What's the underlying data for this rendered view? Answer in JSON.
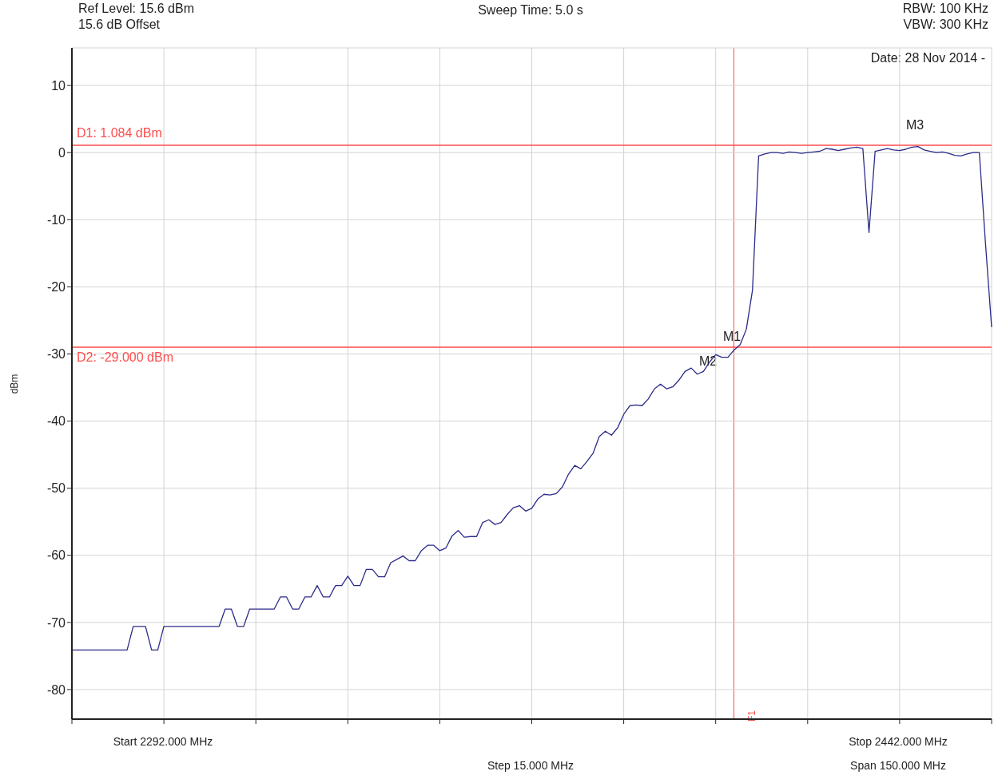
{
  "chart_data": {
    "type": "line",
    "title": "Sweep Time: 5.0 s",
    "ylabel": "dBm",
    "categories": [
      null,
      null,
      null,
      null,
      null,
      null,
      null,
      null,
      null,
      null,
      null,
      null,
      null,
      null,
      null,
      null,
      null,
      null,
      null,
      null,
      null,
      null,
      null,
      null,
      null,
      null,
      null,
      null,
      null,
      null,
      null,
      null,
      null,
      null,
      null,
      null,
      null,
      null,
      null,
      null,
      null,
      null,
      null,
      null,
      null,
      null,
      null,
      null,
      null,
      null,
      null,
      null,
      null,
      null,
      null,
      null,
      null,
      null,
      null,
      null,
      null,
      null,
      null,
      null,
      null,
      null,
      null,
      null,
      null,
      null,
      null,
      null,
      null,
      null,
      null,
      null,
      null,
      null,
      null,
      null,
      null,
      null,
      null,
      null,
      null,
      null,
      null,
      null,
      null,
      null,
      null,
      null,
      null,
      null,
      null,
      null,
      null,
      null,
      null,
      null,
      null,
      null,
      null,
      null,
      null,
      null,
      null,
      null,
      null,
      null,
      null,
      null,
      null,
      null,
      null,
      null,
      null,
      null,
      null,
      null,
      null,
      null,
      null,
      null,
      null,
      null,
      null,
      null,
      null,
      null,
      null,
      null,
      null,
      null,
      null,
      null,
      null,
      null,
      null,
      null,
      null,
      null,
      null,
      null,
      null,
      null,
      null,
      null,
      null,
      null,
      null
    ],
    "series": [
      {
        "color": "#2b2b8a",
        "values": [
          -74.1,
          -74.1,
          -74.1,
          -74.1,
          -74.1,
          -74.1,
          -74.1,
          -74.1,
          -74.1,
          -74.1,
          -70.6,
          -70.6,
          -70.6,
          -74.1,
          -74.1,
          -70.6,
          -70.6,
          -70.6,
          -70.6,
          -70.6,
          -70.6,
          -70.6,
          -70.6,
          -70.6,
          -70.6,
          -68.0,
          -68.0,
          -70.6,
          -70.6,
          -68.0,
          -68.0,
          -68.0,
          -68.0,
          -68.0,
          -66.2,
          -66.2,
          -68.0,
          -68.0,
          -66.2,
          -66.2,
          -64.5,
          -66.2,
          -66.2,
          -64.5,
          -64.5,
          -63.1,
          -64.5,
          -64.5,
          -62.1,
          -62.1,
          -63.2,
          -63.2,
          -61.1,
          -60.6,
          -60.1,
          -60.8,
          -60.8,
          -59.3,
          -58.5,
          -58.5,
          -59.3,
          -58.9,
          -57.1,
          -56.3,
          -57.3,
          -57.2,
          -57.2,
          -55.1,
          -54.7,
          -55.4,
          -55.1,
          -53.9,
          -52.9,
          -52.6,
          -53.4,
          -53.0,
          -51.6,
          -50.9,
          -51.0,
          -50.8,
          -49.8,
          -47.9,
          -46.6,
          -47.1,
          -46.0,
          -44.8,
          -42.3,
          -41.5,
          -42.1,
          -41.0,
          -39.0,
          -37.7,
          -37.6,
          -37.7,
          -36.7,
          -35.2,
          -34.5,
          -35.2,
          -34.9,
          -33.9,
          -32.6,
          -32.1,
          -33.0,
          -32.6,
          -31.2,
          -30.1,
          -30.5,
          -30.5,
          -29.4,
          -28.6,
          -26.3,
          -20.5,
          -0.5,
          -0.2,
          0.0,
          0.0,
          -0.1,
          0.1,
          0.0,
          -0.1,
          0.0,
          0.1,
          0.2,
          0.6,
          0.5,
          0.3,
          0.5,
          0.7,
          0.8,
          0.6,
          -11.9,
          0.2,
          0.4,
          0.6,
          0.4,
          0.3,
          0.5,
          0.8,
          0.9,
          0.4,
          0.2,
          0.0,
          0.1,
          -0.1,
          -0.4,
          -0.5,
          -0.2,
          0.0,
          0.0,
          -13.5,
          -26.0
        ]
      }
    ],
    "ylim": [
      -84.4,
      15.6
    ],
    "yticks": [
      -80,
      -70,
      -60,
      -50,
      -40,
      -30,
      -20,
      -10,
      0,
      10
    ],
    "grid": true,
    "tick_labels": "y",
    "line_style": "solid",
    "ref_lines": [
      {
        "axis": "y",
        "value": 1.084,
        "label": "D1: 1.084 dBm",
        "color": "#ff4d4d"
      },
      {
        "axis": "y",
        "value": -29,
        "label": "D2: -29.000 dBm",
        "color": "#ff4d4d"
      }
    ],
    "annotations": [
      "Ref Level: 15.6 dBm",
      "15.6 dB Offset",
      "RBW: 100 KHz",
      "VBW: 300 KHz",
      "Date: 28 Nov 2014 -",
      "Start 2292.000 MHz",
      "Stop 2442.000 MHz",
      "Step 15.000 MHz",
      "Span 150.000 MHz",
      "M1",
      "M2",
      "M3",
      "F1"
    ]
  }
}
